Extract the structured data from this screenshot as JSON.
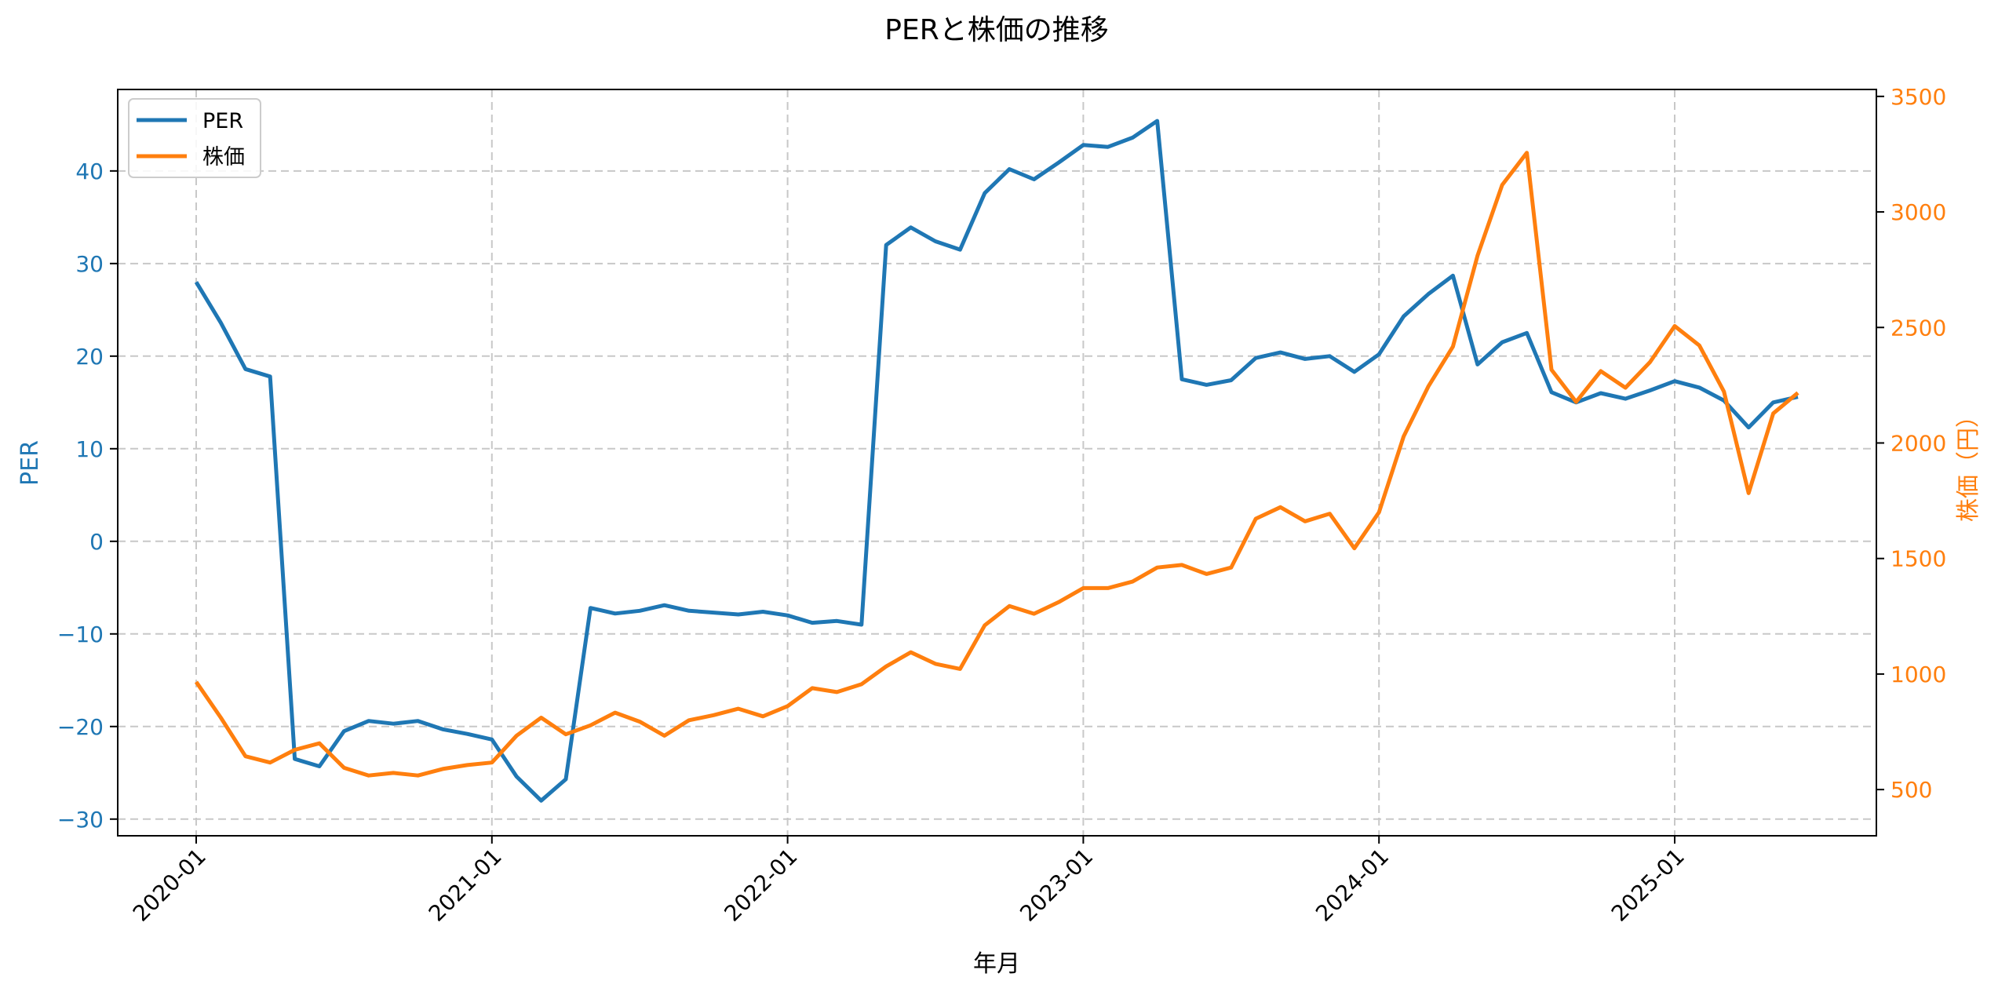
{
  "chart_data": {
    "type": "line",
    "title": "PERと株価の推移",
    "xlabel": "年月",
    "ylabel": "PER",
    "ylabel_right": "株価（円）",
    "xtick_labels": [
      "2020-01",
      "2021-01",
      "2022-01",
      "2023-01",
      "2024-01",
      "2025-01"
    ],
    "yticks_left": [
      -30,
      -20,
      -10,
      0,
      10,
      20,
      30,
      40
    ],
    "yticks_right": [
      500,
      1000,
      1500,
      2000,
      2500,
      3000,
      3500
    ],
    "ylim_left": [
      -31.8,
      48.8
    ],
    "ylim_right": [
      300,
      3530
    ],
    "grid": true,
    "legend_position": "upper left",
    "colors": {
      "PER": "#1f77b4",
      "株価": "#ff7f0e"
    },
    "x": [
      "2020-01",
      "2020-02",
      "2020-03",
      "2020-04",
      "2020-05",
      "2020-06",
      "2020-07",
      "2020-08",
      "2020-09",
      "2020-10",
      "2020-11",
      "2020-12",
      "2021-01",
      "2021-02",
      "2021-03",
      "2021-04",
      "2021-05",
      "2021-06",
      "2021-07",
      "2021-08",
      "2021-09",
      "2021-10",
      "2021-11",
      "2021-12",
      "2022-01",
      "2022-02",
      "2022-03",
      "2022-04",
      "2022-05",
      "2022-06",
      "2022-07",
      "2022-08",
      "2022-09",
      "2022-10",
      "2022-11",
      "2022-12",
      "2023-01",
      "2023-02",
      "2023-03",
      "2023-04",
      "2023-05",
      "2023-06",
      "2023-07",
      "2023-08",
      "2023-09",
      "2023-10",
      "2023-11",
      "2023-12",
      "2024-01",
      "2024-02",
      "2024-03",
      "2024-04",
      "2024-05",
      "2024-06",
      "2024-07",
      "2024-08",
      "2024-09",
      "2024-10",
      "2024-11",
      "2024-12",
      "2025-01",
      "2025-02",
      "2025-03",
      "2025-04",
      "2025-05",
      "2025-06"
    ],
    "series": [
      {
        "name": "PER",
        "axis": "left",
        "values": [
          28.0,
          23.6,
          18.6,
          17.8,
          -23.5,
          -24.3,
          -20.5,
          -19.4,
          -19.7,
          -19.4,
          -20.3,
          -20.8,
          -21.4,
          -25.4,
          -28.0,
          -25.7,
          -7.2,
          -7.8,
          -7.5,
          -6.9,
          -7.5,
          -7.7,
          -7.9,
          -7.6,
          -8.0,
          -8.8,
          -8.6,
          -9.0,
          32.0,
          33.9,
          32.4,
          31.5,
          37.6,
          40.2,
          39.1,
          40.9,
          42.8,
          42.6,
          43.6,
          45.4,
          17.5,
          16.9,
          17.4,
          19.8,
          20.4,
          19.7,
          20.0,
          18.3,
          20.2,
          24.3,
          26.7,
          28.7,
          19.1,
          21.5,
          22.5,
          16.1,
          15.0,
          16.0,
          15.4,
          16.3,
          17.3,
          16.6,
          15.2,
          12.3,
          15.0,
          15.6
        ]
      },
      {
        "name": "株価",
        "axis": "right",
        "values": [
          966,
          811,
          644,
          617,
          672,
          700,
          594,
          561,
          572,
          561,
          589,
          606,
          617,
          733,
          811,
          739,
          778,
          833,
          794,
          733,
          800,
          822,
          850,
          817,
          861,
          939,
          922,
          956,
          1033,
          1094,
          1044,
          1022,
          1211,
          1294,
          1261,
          1311,
          1372,
          1372,
          1400,
          1461,
          1472,
          1433,
          1461,
          1672,
          1722,
          1661,
          1694,
          1544,
          1700,
          2028,
          2244,
          2417,
          2811,
          3117,
          3256,
          2317,
          2178,
          2311,
          2239,
          2350,
          2506,
          2422,
          2222,
          1783,
          2128,
          2217
        ]
      }
    ]
  },
  "legend": {
    "items": [
      {
        "label": "PER",
        "color": "#1f77b4"
      },
      {
        "label": "株価",
        "color": "#ff7f0e"
      }
    ]
  }
}
